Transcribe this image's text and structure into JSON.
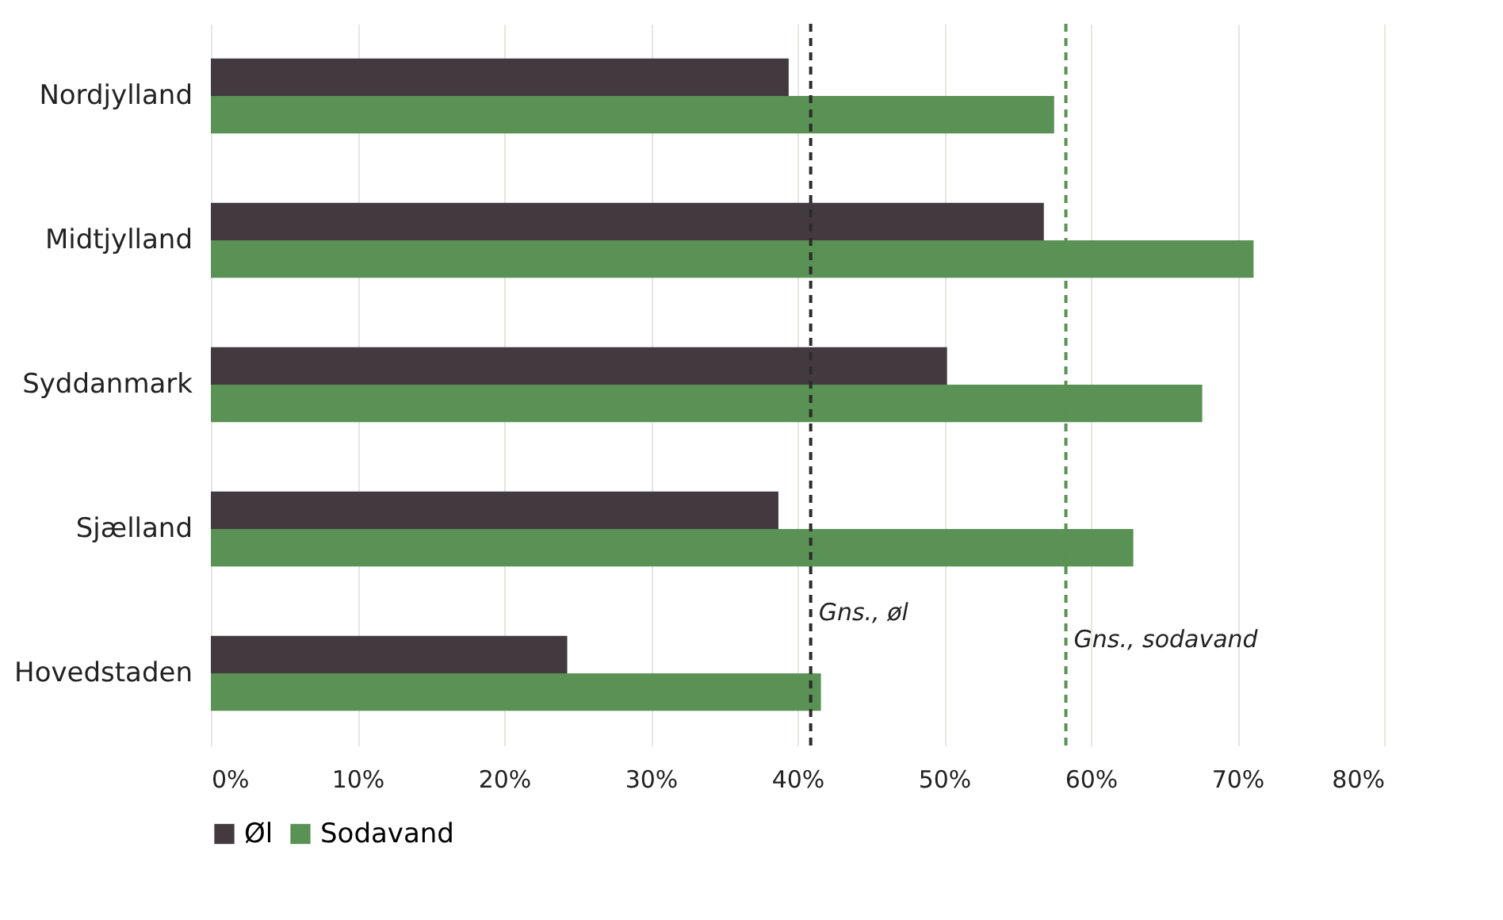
{
  "chart_data": {
    "type": "bar",
    "orientation": "horizontal",
    "categories": [
      "Nordjylland",
      "Midtjylland",
      "Syddanmark",
      "Sjælland",
      "Hovedstaden"
    ],
    "series": [
      {
        "name": "Øl",
        "color": "#433a3f",
        "values": [
          39.4,
          56.8,
          50.2,
          38.7,
          24.3
        ]
      },
      {
        "name": "Sodavand",
        "color": "#5a9154",
        "values": [
          57.5,
          71.1,
          67.6,
          62.9,
          41.6
        ]
      }
    ],
    "xlim": [
      0,
      80
    ],
    "xticks": [
      {
        "value": 0,
        "label": "0%"
      },
      {
        "value": 10,
        "label": "10%"
      },
      {
        "value": 20,
        "label": "20%"
      },
      {
        "value": 30,
        "label": "30%"
      },
      {
        "value": 40,
        "label": "40%"
      },
      {
        "value": 50,
        "label": "50%"
      },
      {
        "value": 60,
        "label": "60%"
      },
      {
        "value": 70,
        "label": "70%"
      },
      {
        "value": 80,
        "label": "80%"
      }
    ],
    "ref_lines": [
      {
        "axis": "x",
        "value": 40.9,
        "label": "Gns., øl",
        "color": "#2b2b2b",
        "line_style": "dashed"
      },
      {
        "axis": "x",
        "value": 58.3,
        "label": "Gns., sodavand",
        "color": "#5a9154",
        "line_style": "dashed"
      }
    ],
    "grid": "x",
    "legend": "bottom"
  }
}
